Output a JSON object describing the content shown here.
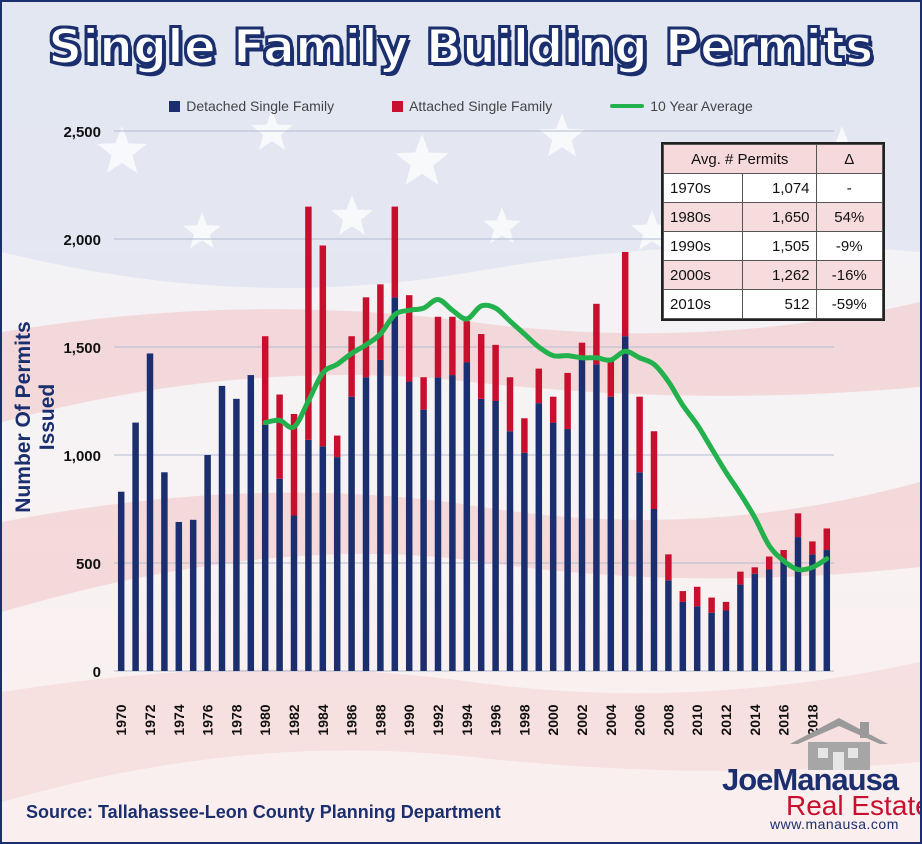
{
  "chart_data": {
    "type": "bar",
    "title": "Single Family Building Permits",
    "ylabel": "Number Of Permits Issued",
    "xlabel": "",
    "ylim": [
      0,
      2500
    ],
    "yticks": [
      0,
      500,
      1000,
      1500,
      2000,
      2500
    ],
    "ytick_labels": [
      "0",
      "500",
      "1,000",
      "1,500",
      "2,000",
      "2,500"
    ],
    "x": [
      1970,
      1971,
      1972,
      1973,
      1974,
      1975,
      1976,
      1977,
      1978,
      1979,
      1980,
      1981,
      1982,
      1983,
      1984,
      1985,
      1986,
      1987,
      1988,
      1989,
      1990,
      1991,
      1992,
      1993,
      1994,
      1995,
      1996,
      1997,
      1998,
      1999,
      2000,
      2001,
      2002,
      2003,
      2004,
      2005,
      2006,
      2007,
      2008,
      2009,
      2010,
      2011,
      2012,
      2013,
      2014,
      2015,
      2016,
      2017,
      2018,
      2019
    ],
    "xtick_labels": [
      "1970",
      "1972",
      "1974",
      "1976",
      "1978",
      "1980",
      "1982",
      "1984",
      "1986",
      "1988",
      "1990",
      "1992",
      "1994",
      "1996",
      "1998",
      "2000",
      "2002",
      "2004",
      "2006",
      "2008",
      "2010",
      "2012",
      "2014",
      "2016",
      "2018"
    ],
    "stacked": true,
    "grid": true,
    "legend_position": "top",
    "series": [
      {
        "name": "Detached Single Family",
        "color": "#1b2f6e",
        "values": [
          830,
          1150,
          1470,
          920,
          690,
          700,
          1000,
          1320,
          1260,
          1370,
          1140,
          890,
          720,
          1070,
          1040,
          990,
          1270,
          1360,
          1440,
          1730,
          1340,
          1210,
          1360,
          1370,
          1430,
          1260,
          1250,
          1110,
          1010,
          1240,
          1150,
          1120,
          1440,
          1420,
          1270,
          1550,
          920,
          750,
          420,
          320,
          300,
          270,
          280,
          400,
          450,
          470,
          520,
          620,
          540,
          560
        ]
      },
      {
        "name": "Attached Single Family",
        "color": "#c8102e",
        "values": [
          0,
          0,
          0,
          0,
          0,
          0,
          0,
          0,
          0,
          0,
          410,
          390,
          470,
          1080,
          930,
          100,
          280,
          370,
          350,
          420,
          400,
          150,
          280,
          270,
          190,
          300,
          260,
          250,
          160,
          160,
          120,
          260,
          80,
          280,
          170,
          390,
          350,
          360,
          120,
          50,
          90,
          70,
          40,
          60,
          30,
          60,
          40,
          110,
          60,
          100
        ]
      },
      {
        "name": "10 Year Average",
        "type": "line",
        "color": "#22b14c",
        "values": [
          null,
          null,
          null,
          null,
          null,
          null,
          null,
          null,
          null,
          null,
          1150,
          1160,
          1130,
          1250,
          1380,
          1420,
          1470,
          1510,
          1560,
          1650,
          1670,
          1680,
          1720,
          1670,
          1630,
          1690,
          1680,
          1620,
          1560,
          1500,
          1460,
          1460,
          1450,
          1450,
          1440,
          1480,
          1450,
          1420,
          1340,
          1230,
          1140,
          1030,
          920,
          820,
          710,
          580,
          510,
          470,
          480,
          520
        ]
      }
    ],
    "annotations": {
      "source": "Source: Tallahassee-Leon County Planning Department"
    },
    "table": {
      "headers": [
        "Avg. # Permits",
        "",
        "Δ"
      ],
      "rows": [
        [
          "1970s",
          "1,074",
          "-"
        ],
        [
          "1980s",
          "1,650",
          "54%"
        ],
        [
          "1990s",
          "1,505",
          "-9%"
        ],
        [
          "2000s",
          "1,262",
          "-16%"
        ],
        [
          "2010s",
          "512",
          "-59%"
        ]
      ]
    }
  },
  "logo": {
    "brand": "JoeManausa",
    "sub": "Real Estate",
    "url": "www.manausa.com"
  }
}
